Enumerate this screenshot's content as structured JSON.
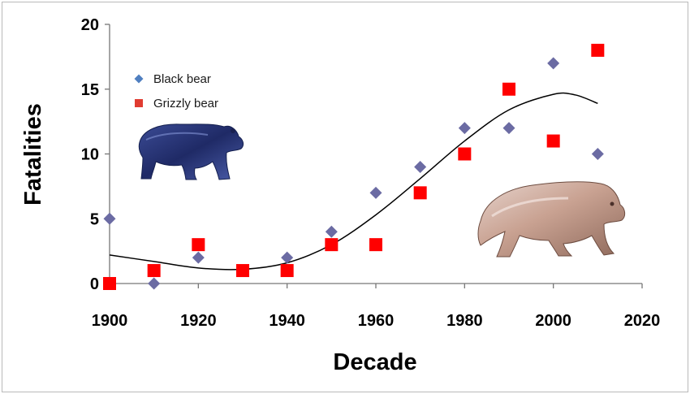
{
  "chart_data": {
    "type": "scatter",
    "xlabel": "Decade",
    "ylabel": "Fatalities",
    "xlim": [
      1900,
      2020
    ],
    "ylim": [
      0,
      20
    ],
    "x_ticks": [
      "1900",
      "1920",
      "1940",
      "1960",
      "1980",
      "2000",
      "2020"
    ],
    "y_ticks": [
      "0",
      "5",
      "10",
      "15",
      "20"
    ],
    "grid": false,
    "legend": "top-left",
    "series": [
      {
        "name": "Black bear",
        "marker": "diamond",
        "color": "#6b6ba3",
        "legend_color": "#4f7fc0",
        "points": [
          {
            "x": 1900,
            "y": 5
          },
          {
            "x": 1910,
            "y": 0
          },
          {
            "x": 1920,
            "y": 2
          },
          {
            "x": 1930,
            "y": 1
          },
          {
            "x": 1940,
            "y": 2
          },
          {
            "x": 1950,
            "y": 4
          },
          {
            "x": 1960,
            "y": 7
          },
          {
            "x": 1970,
            "y": 9
          },
          {
            "x": 1980,
            "y": 12
          },
          {
            "x": 1990,
            "y": 12
          },
          {
            "x": 2000,
            "y": 17
          },
          {
            "x": 2010,
            "y": 10
          }
        ]
      },
      {
        "name": "Grizzly bear",
        "marker": "square",
        "color": "#ff0000",
        "legend_color": "#e03c31",
        "points": [
          {
            "x": 1900,
            "y": 0
          },
          {
            "x": 1910,
            "y": 1
          },
          {
            "x": 1920,
            "y": 3
          },
          {
            "x": 1930,
            "y": 1
          },
          {
            "x": 1940,
            "y": 1
          },
          {
            "x": 1950,
            "y": 3
          },
          {
            "x": 1960,
            "y": 3
          },
          {
            "x": 1970,
            "y": 7
          },
          {
            "x": 1980,
            "y": 10
          },
          {
            "x": 1990,
            "y": 15
          },
          {
            "x": 2000,
            "y": 11
          },
          {
            "x": 2010,
            "y": 18
          }
        ]
      }
    ],
    "trendline": {
      "type": "polynomial",
      "color": "#000000",
      "points": [
        {
          "x": 1900,
          "y": 2.2
        },
        {
          "x": 1910,
          "y": 1.7
        },
        {
          "x": 1920,
          "y": 1.2
        },
        {
          "x": 1930,
          "y": 1.1
        },
        {
          "x": 1940,
          "y": 1.6
        },
        {
          "x": 1950,
          "y": 3.0
        },
        {
          "x": 1960,
          "y": 5.3
        },
        {
          "x": 1970,
          "y": 8.1
        },
        {
          "x": 1980,
          "y": 11.0
        },
        {
          "x": 1990,
          "y": 13.4
        },
        {
          "x": 2000,
          "y": 14.6
        },
        {
          "x": 2005,
          "y": 14.55
        },
        {
          "x": 2010,
          "y": 13.9
        }
      ]
    },
    "illustrations": [
      {
        "name": "black-bear-illustration",
        "color": "#2e3a7a"
      },
      {
        "name": "grizzly-bear-illustration",
        "color": "#b98a77"
      }
    ]
  }
}
